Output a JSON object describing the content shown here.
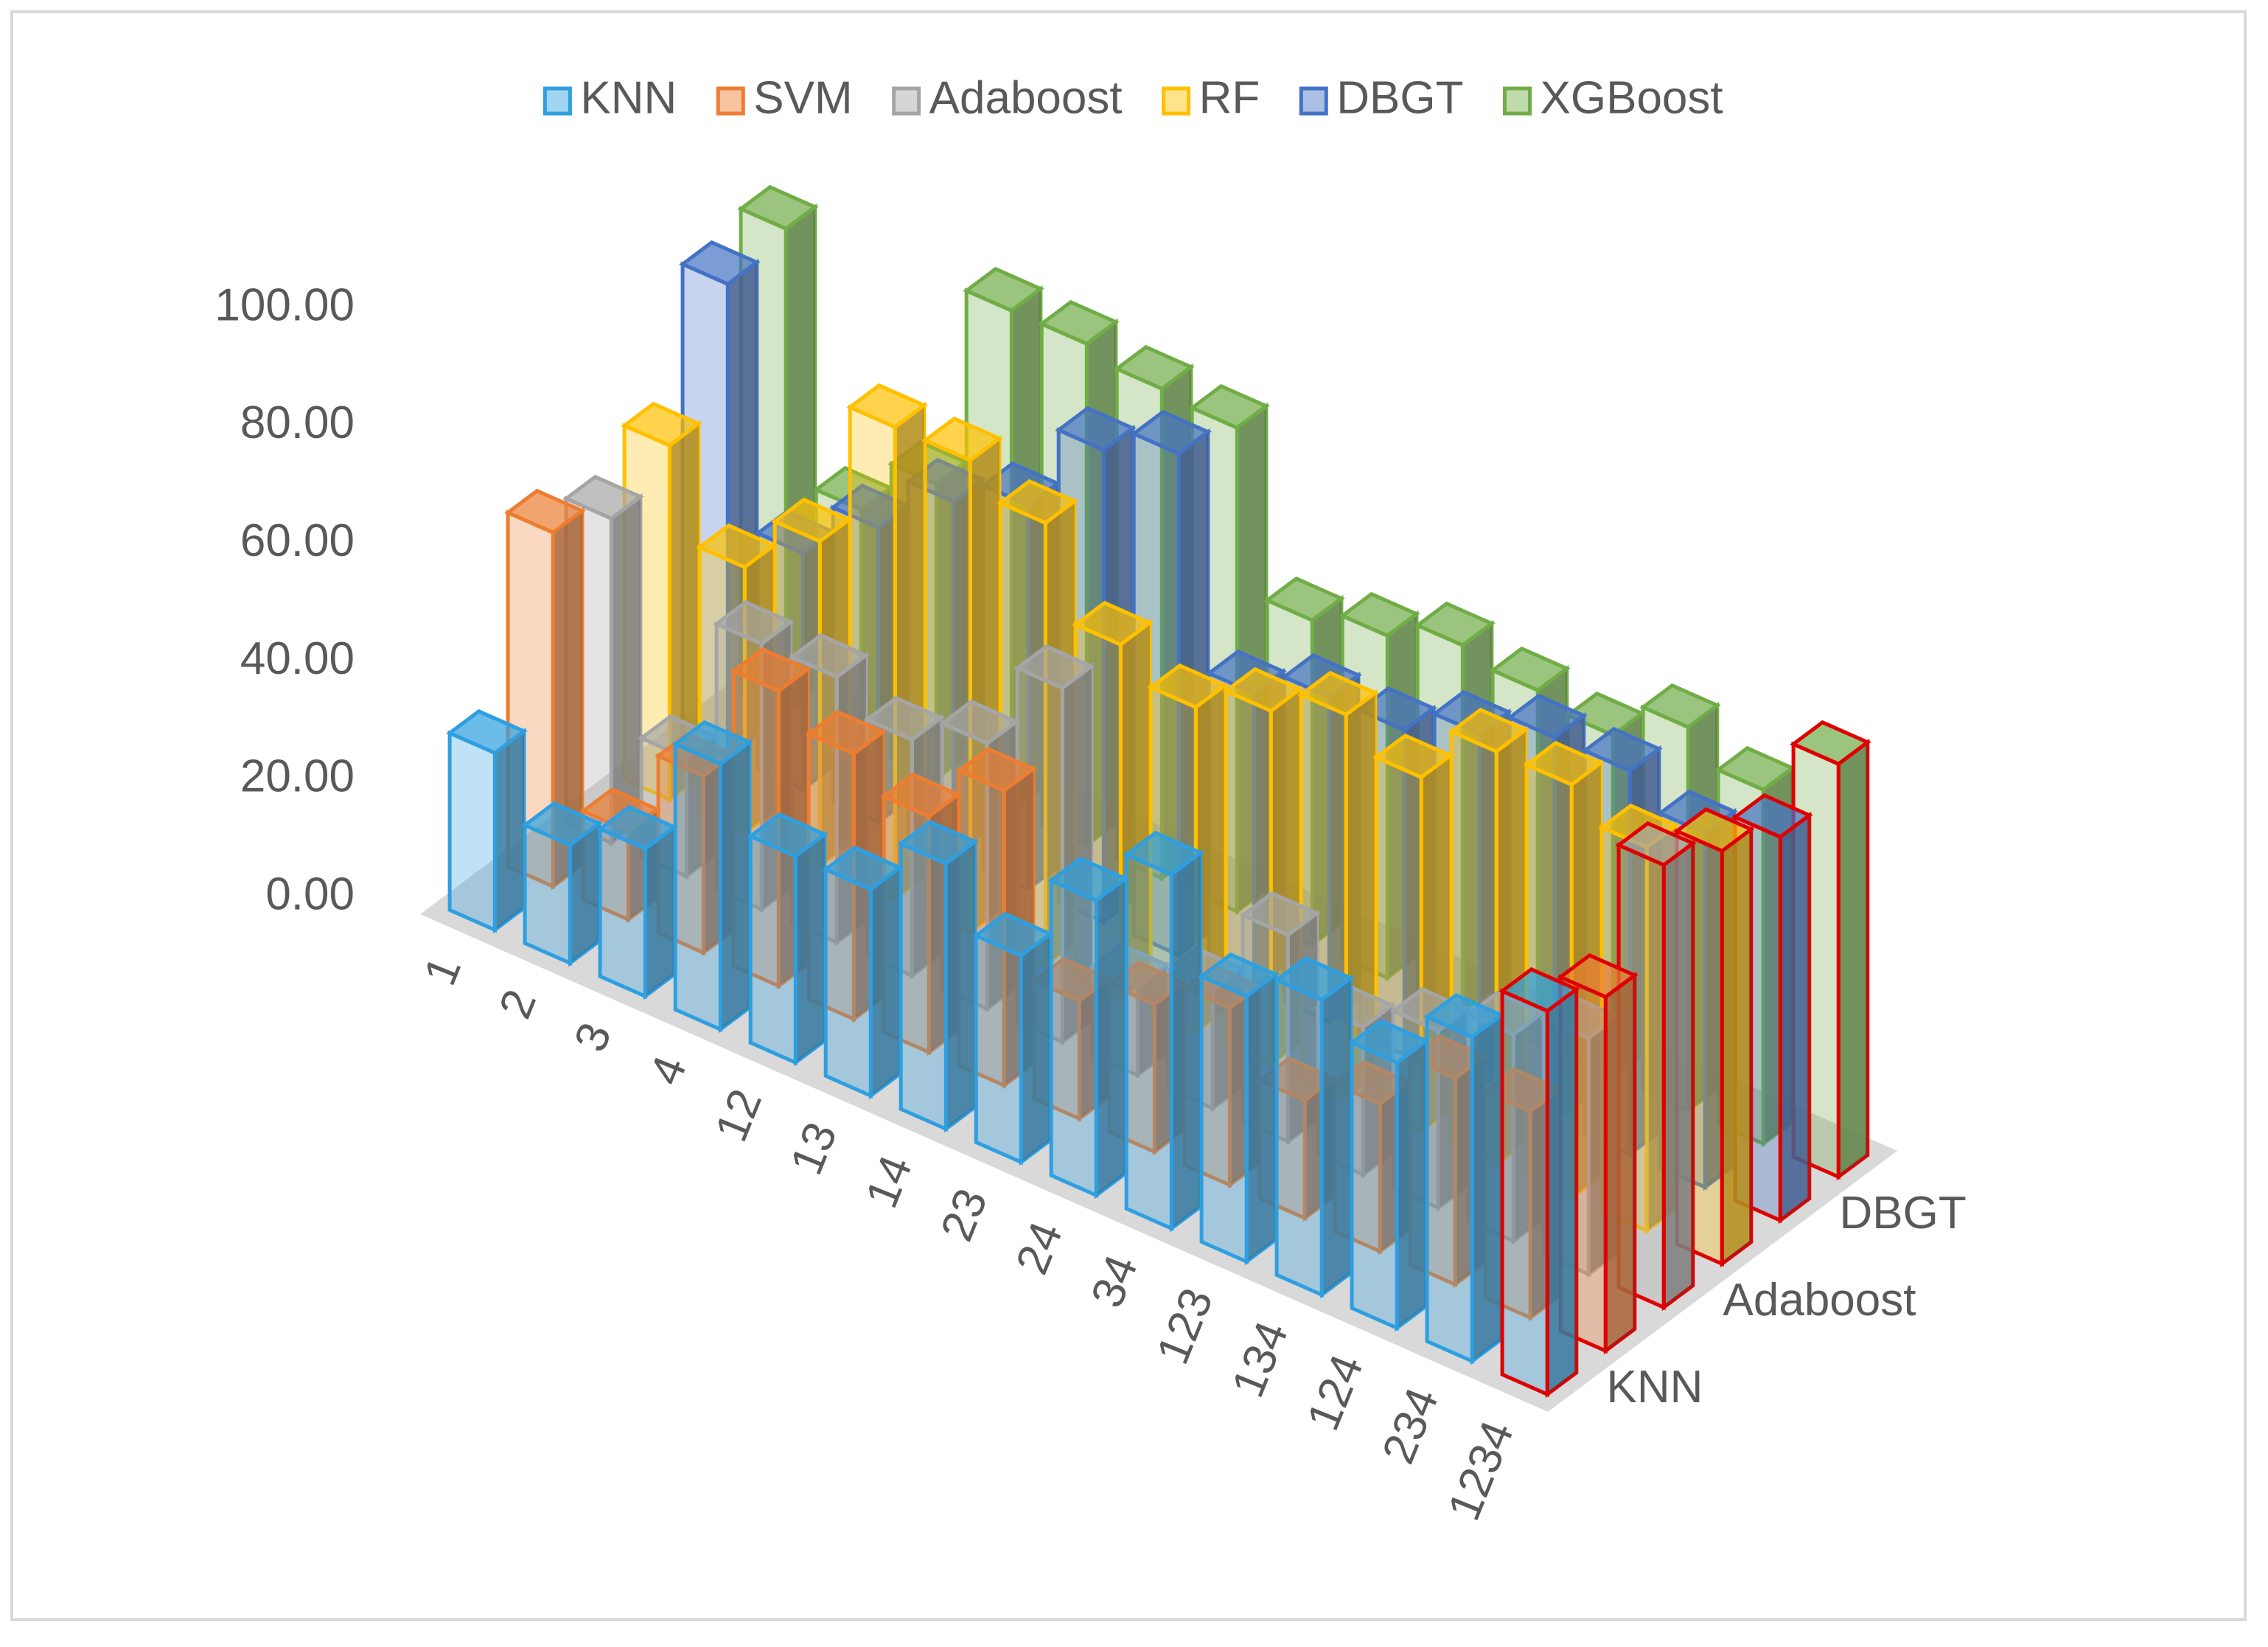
{
  "chart_data": {
    "type": "bar3d",
    "categories": [
      "1",
      "2",
      "3",
      "4",
      "12",
      "13",
      "14",
      "23",
      "24",
      "34",
      "123",
      "134",
      "124",
      "234",
      "1234"
    ],
    "series": [
      {
        "name": "KNN",
        "color": "#2e9fe0",
        "values": [
          30,
          20,
          25,
          45,
          35,
          35,
          45,
          35,
          50,
          60,
          45,
          50,
          45,
          55,
          65
        ]
      },
      {
        "name": "SVM",
        "color": "#ed7d31",
        "values": [
          60,
          15,
          30,
          50,
          45,
          40,
          50,
          20,
          25,
          30,
          20,
          25,
          35,
          35,
          60
        ]
      },
      {
        "name": "Adaboost",
        "color": "#a5a5a5",
        "values": [
          55,
          20,
          45,
          45,
          40,
          45,
          60,
          15,
          20,
          35,
          25,
          30,
          35,
          40,
          75
        ]
      },
      {
        "name": "RF",
        "color": "#ffc000",
        "values": [
          60,
          45,
          55,
          80,
          80,
          75,
          60,
          55,
          60,
          65,
          60,
          70,
          70,
          65,
          70
        ]
      },
      {
        "name": "DBGT",
        "color": "#4472c4",
        "values": [
          80,
          40,
          50,
          60,
          65,
          80,
          85,
          50,
          55,
          55,
          60,
          65,
          65,
          60,
          65
        ]
      },
      {
        "name": "XGBoost",
        "color": "#70ad47",
        "values": [
          82,
          40,
          50,
          85,
          85,
          83,
          82,
          55,
          58,
          62,
          60,
          58,
          65,
          60,
          70
        ]
      }
    ],
    "ylim": [
      0,
      100
    ],
    "yticks": [
      {
        "value": 0,
        "label": "0.00"
      },
      {
        "value": 20,
        "label": "20.00"
      },
      {
        "value": 40,
        "label": "40.00"
      },
      {
        "value": 60,
        "label": "60.00"
      },
      {
        "value": 80,
        "label": "80.00"
      },
      {
        "value": 100,
        "label": "100.00"
      }
    ],
    "highlight_color": "#e00000",
    "legend": "top"
  }
}
